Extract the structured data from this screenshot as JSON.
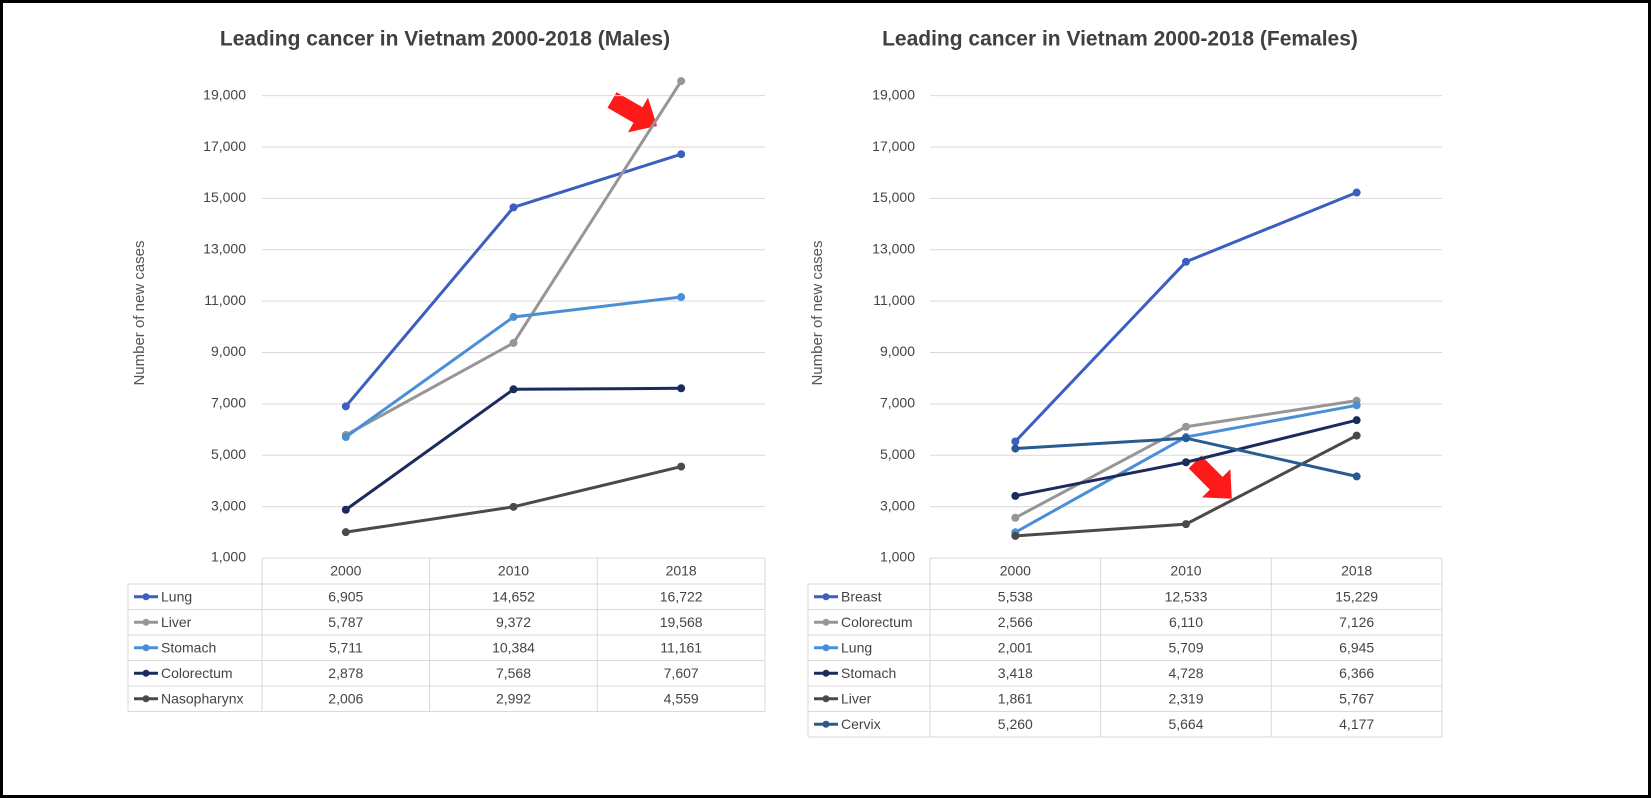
{
  "chart_data": [
    {
      "type": "line",
      "title": "Leading cancer in Vietnam 2000-2018 (Males)",
      "y_label": "Number of new cases",
      "categories": [
        "2000",
        "2010",
        "2018"
      ],
      "ylim": [
        1000,
        20000
      ],
      "yticks": [
        {
          "value": 1000,
          "label": "1,000"
        },
        {
          "value": 3000,
          "label": "3,000"
        },
        {
          "value": 5000,
          "label": "5,000"
        },
        {
          "value": 7000,
          "label": "7,000"
        },
        {
          "value": 9000,
          "label": "9,000"
        },
        {
          "value": 11000,
          "label": "11,000"
        },
        {
          "value": 13000,
          "label": "13,000"
        },
        {
          "value": 15000,
          "label": "15,000"
        },
        {
          "value": 17000,
          "label": "17,000"
        },
        {
          "value": 19000,
          "label": "19,000"
        }
      ],
      "grid": true,
      "series": [
        {
          "name": "Lung",
          "color": "#3a5fc0",
          "values": [
            6905,
            14652,
            16722
          ],
          "value_labels": [
            "6,905",
            "14,652",
            "16,722"
          ]
        },
        {
          "name": "Liver",
          "color": "#969696",
          "values": [
            5787,
            9372,
            19568
          ],
          "value_labels": [
            "5,787",
            "9,372",
            "19,568"
          ]
        },
        {
          "name": "Stomach",
          "color": "#4a8fd6",
          "values": [
            5711,
            10384,
            11161
          ],
          "value_labels": [
            "5,711",
            "10,384",
            "11,161"
          ]
        },
        {
          "name": "Colorectum",
          "color": "#1b2b5e",
          "values": [
            2878,
            7568,
            7607
          ],
          "value_labels": [
            "2,878",
            "7,568",
            "7,607"
          ]
        },
        {
          "name": "Nasopharynx",
          "color": "#4a4a4a",
          "values": [
            2006,
            2992,
            4559
          ],
          "value_labels": [
            "2,006",
            "2,992",
            "4,559"
          ]
        }
      ]
    },
    {
      "type": "line",
      "title": "Leading cancer in Vietnam 2000-2018 (Females)",
      "y_label": "Number of new cases",
      "categories": [
        "2000",
        "2010",
        "2018"
      ],
      "ylim": [
        1000,
        20000
      ],
      "yticks": [
        {
          "value": 1000,
          "label": "1,000"
        },
        {
          "value": 3000,
          "label": "3,000"
        },
        {
          "value": 5000,
          "label": "5,000"
        },
        {
          "value": 7000,
          "label": "7,000"
        },
        {
          "value": 9000,
          "label": "9,000"
        },
        {
          "value": 11000,
          "label": "11,000"
        },
        {
          "value": 13000,
          "label": "13,000"
        },
        {
          "value": 15000,
          "label": "15,000"
        },
        {
          "value": 17000,
          "label": "17,000"
        },
        {
          "value": 19000,
          "label": "19,000"
        }
      ],
      "grid": true,
      "series": [
        {
          "name": "Breast",
          "color": "#3a5fc0",
          "values": [
            5538,
            12533,
            15229
          ],
          "value_labels": [
            "5,538",
            "12,533",
            "15,229"
          ]
        },
        {
          "name": "Colorectum",
          "color": "#969696",
          "values": [
            2566,
            6110,
            7126
          ],
          "value_labels": [
            "2,566",
            "6,110",
            "7,126"
          ]
        },
        {
          "name": "Lung",
          "color": "#4a8fd6",
          "values": [
            2001,
            5709,
            6945
          ],
          "value_labels": [
            "2,001",
            "5,709",
            "6,945"
          ]
        },
        {
          "name": "Stomach",
          "color": "#1b2b5e",
          "values": [
            3418,
            4728,
            6366
          ],
          "value_labels": [
            "3,418",
            "4,728",
            "6,366"
          ]
        },
        {
          "name": "Liver",
          "color": "#4a4a4a",
          "values": [
            1861,
            2319,
            5767
          ],
          "value_labels": [
            "1,861",
            "2,319",
            "5,767"
          ]
        },
        {
          "name": "Cervix",
          "color": "#2a5a92",
          "values": [
            5260,
            5664,
            4177
          ],
          "value_labels": [
            "5,260",
            "5,664",
            "4,177"
          ]
        }
      ]
    }
  ]
}
